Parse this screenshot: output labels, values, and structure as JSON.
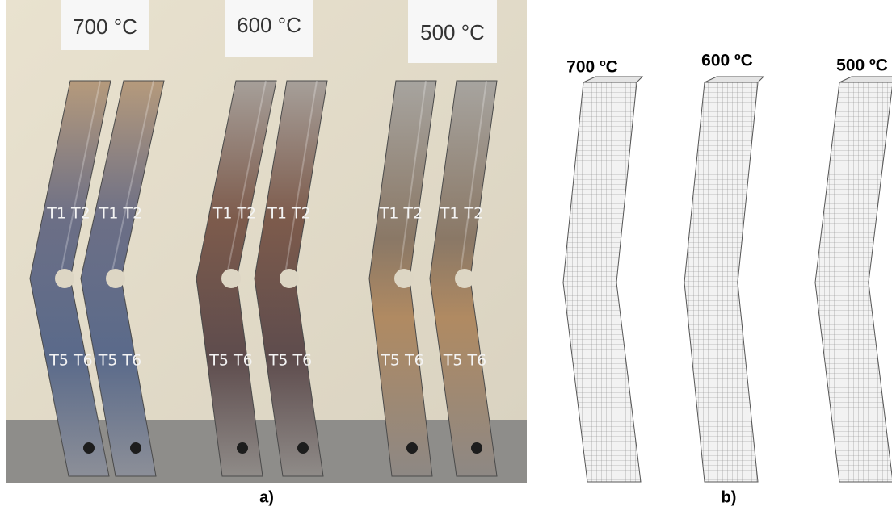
{
  "photo": {
    "labels": [
      "700 °C",
      "600 °C",
      "500 °C"
    ],
    "tube_marks": [
      "T1 T2",
      "T5 T6"
    ],
    "caption": "a)"
  },
  "model": {
    "labels": [
      "700 ºC",
      "600 ºC",
      "500 ºC"
    ],
    "caption": "b)"
  }
}
